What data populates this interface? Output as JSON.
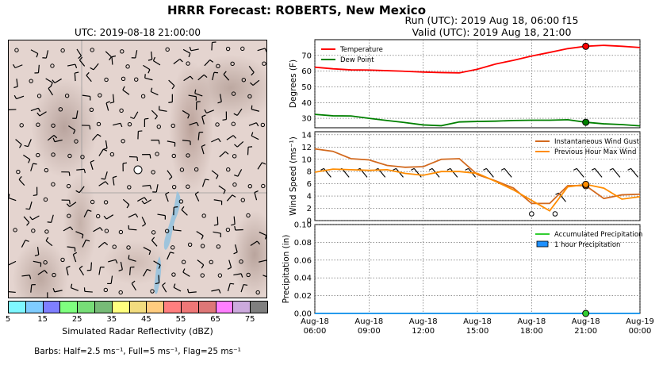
{
  "header": {
    "title": "HRRR Forecast: ROBERTS, New Mexico",
    "run": "Run (UTC): 2019 Aug 18, 06:00 f15",
    "valid": "Valid (UTC): 2019 Aug 18, 21:00"
  },
  "map": {
    "title": "UTC: 2019-08-18 21:00:00",
    "colorbar": {
      "label": "Simulated Radar Reflectivity (dBZ)",
      "ticks": [
        "5",
        "15",
        "25",
        "35",
        "45",
        "55",
        "65",
        "75"
      ],
      "colors": [
        "#7ff7ff",
        "#7fccff",
        "#7f7fff",
        "#7fff7f",
        "#77dd77",
        "#77bb77",
        "#ffff7f",
        "#f2dc7f",
        "#ffcc7f",
        "#ff7f7f",
        "#ee7777",
        "#dd7777",
        "#ff7fff",
        "#ccaadd",
        "#7f7f7f"
      ]
    },
    "barbs_note": "Barbs: Half=2.5 ms⁻¹, Full=5 ms⁻¹, Flag=25 ms⁻¹",
    "colors": {
      "terrain": "#e4d4cf",
      "water": "#9ec4dc",
      "station": "#ffffff"
    }
  },
  "chart_data": [
    {
      "type": "line",
      "id": "temperature",
      "ylabel": "Degrees (F)",
      "ylim": [
        24,
        80
      ],
      "yticks": [
        30,
        40,
        50,
        60,
        70
      ],
      "x": [
        0,
        1,
        2,
        3,
        4,
        5,
        6,
        7,
        8,
        9,
        10,
        11,
        12,
        13,
        14,
        15,
        16,
        17,
        18
      ],
      "series": [
        {
          "name": "Temperature",
          "color": "#ff0000",
          "values": [
            62.5,
            61.5,
            60.8,
            60.7,
            60.3,
            59.9,
            59.4,
            59.1,
            58.9,
            61.2,
            64.5,
            66.9,
            69.6,
            71.9,
            74.3,
            75.8,
            76.4,
            75.8,
            75.0
          ]
        },
        {
          "name": "Dew Point",
          "color": "#008000",
          "values": [
            32.5,
            31.6,
            31.5,
            30.0,
            28.6,
            27.3,
            25.8,
            25.3,
            27.7,
            28.0,
            28.2,
            28.6,
            28.8,
            28.8,
            29.1,
            27.5,
            26.5,
            26.0,
            25.2
          ]
        }
      ],
      "marker": {
        "x": 15,
        "values": [
          75.8,
          27.5
        ]
      },
      "grid": true,
      "legend": "top-left"
    },
    {
      "type": "line",
      "id": "wind",
      "ylabel": "Wind Speed (ms⁻¹)",
      "ylim": [
        0,
        14.5
      ],
      "yticks": [
        0,
        2,
        4,
        6,
        8,
        10,
        12,
        14
      ],
      "x": [
        0,
        1,
        2,
        3,
        4,
        5,
        6,
        7,
        8,
        9,
        10,
        11,
        12,
        13,
        14,
        15,
        16,
        17,
        18
      ],
      "series": [
        {
          "name": "Instantaneous Wind Gust",
          "color": "#d2691e",
          "values": [
            11.7,
            11.3,
            10.1,
            9.9,
            9.0,
            8.7,
            8.8,
            10.0,
            10.1,
            7.5,
            6.5,
            5.3,
            2.8,
            2.8,
            5.7,
            5.7,
            3.6,
            4.2,
            4.3
          ]
        },
        {
          "name": "Previous Hour Max Wind",
          "color": "#ff8c00",
          "values": [
            7.9,
            8.4,
            8.3,
            8.2,
            8.3,
            7.7,
            7.4,
            8.0,
            8.0,
            7.7,
            6.4,
            5.0,
            3.3,
            1.6,
            5.5,
            5.9,
            5.3,
            3.5,
            3.9
          ]
        }
      ],
      "marker": {
        "x": 15,
        "values": [
          5.7,
          5.9
        ]
      },
      "grid": true,
      "legend": "top-right"
    },
    {
      "type": "area",
      "id": "precipitation",
      "ylabel": "Precipitation (in)",
      "ylim": [
        0,
        0.1
      ],
      "yticks": [
        0.0,
        0.02,
        0.04,
        0.06,
        0.08,
        0.1
      ],
      "ytick_labels": [
        "0.00",
        "0.02",
        "0.04",
        "0.06",
        "0.08",
        "0.10"
      ],
      "x": [
        0,
        1,
        2,
        3,
        4,
        5,
        6,
        7,
        8,
        9,
        10,
        11,
        12,
        13,
        14,
        15,
        16,
        17,
        18
      ],
      "series": [
        {
          "name": "Accumulated Precipitation",
          "color": "#32cd32",
          "values": [
            0,
            0,
            0,
            0,
            0,
            0,
            0,
            0,
            0,
            0,
            0,
            0,
            0,
            0,
            0,
            0,
            0,
            0,
            0
          ]
        },
        {
          "name": "1 hour Precipitation",
          "color": "#1e90ff",
          "values": [
            0,
            0,
            0,
            0,
            0,
            0,
            0,
            0,
            0,
            0,
            0,
            0,
            0,
            0,
            0,
            0,
            0,
            0,
            0
          ]
        }
      ],
      "marker": {
        "x": 15,
        "values": [
          0
        ]
      },
      "grid": true,
      "legend": "top-right",
      "xticks": [
        0,
        3,
        6,
        9,
        12,
        15,
        18
      ],
      "xtick_labels": [
        [
          "Aug-18",
          "06:00"
        ],
        [
          "Aug-18",
          "09:00"
        ],
        [
          "Aug-18",
          "12:00"
        ],
        [
          "Aug-18",
          "15:00"
        ],
        [
          "Aug-18",
          "18:00"
        ],
        [
          "Aug-18",
          "21:00"
        ],
        [
          "Aug-19",
          "00:00"
        ]
      ]
    }
  ]
}
